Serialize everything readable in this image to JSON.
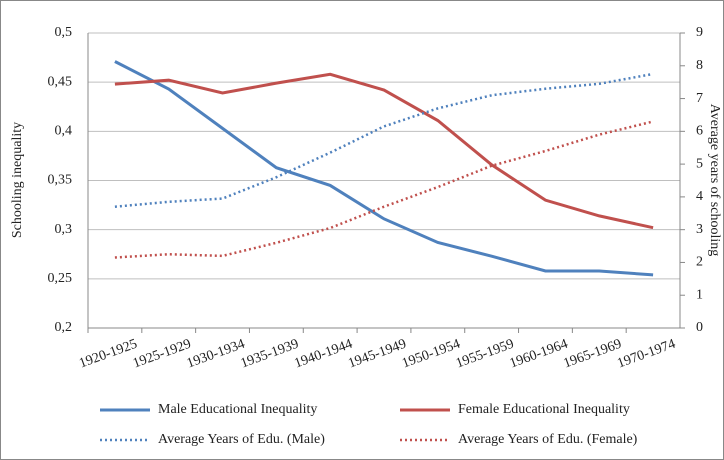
{
  "chart_data": {
    "type": "line",
    "y_label": "Schooling inequality",
    "y2_label": "Average years of schooling",
    "categories": [
      "1920-1925",
      "1925-1929",
      "1930-1934",
      "1935-1939",
      "1940-1944",
      "1945-1949",
      "1950-1954",
      "1955-1959",
      "1960-1964",
      "1965-1969",
      "1970-1974"
    ],
    "ylim": [
      0.2,
      0.5
    ],
    "yticks": [
      {
        "value": 0.2,
        "label": "0,2"
      },
      {
        "value": 0.25,
        "label": "0,25"
      },
      {
        "value": 0.3,
        "label": "0,3"
      },
      {
        "value": 0.35,
        "label": "0,35"
      },
      {
        "value": 0.4,
        "label": "0,4"
      },
      {
        "value": 0.45,
        "label": "0,45"
      },
      {
        "value": 0.5,
        "label": "0,5"
      }
    ],
    "y2lim": [
      0,
      9
    ],
    "y2ticks": [
      0,
      1,
      2,
      3,
      4,
      5,
      6,
      7,
      8,
      9
    ],
    "grid": true,
    "legend": "bottom",
    "series": [
      {
        "name": "Male Educational Inequality",
        "color": "#4f81bd",
        "style": "solid",
        "values": [
          0.471,
          0.443,
          0.403,
          0.363,
          0.345,
          0.311,
          0.287,
          0.273,
          0.258,
          0.258,
          0.254
        ]
      },
      {
        "name": "Female Educational Inequality",
        "color": "#c0504d",
        "style": "solid",
        "values": [
          0.448,
          0.452,
          0.439,
          0.449,
          0.458,
          0.442,
          0.411,
          0.366,
          0.33,
          0.314,
          0.302
        ]
      },
      {
        "name": "Average Years of Edu. (Male)",
        "color": "#4f81bd",
        "style": "dotted",
        "axis": "y2",
        "values": [
          3.7,
          3.85,
          3.95,
          4.6,
          5.35,
          6.15,
          6.7,
          7.1,
          7.3,
          7.45,
          7.75
        ]
      },
      {
        "name": "Average Years of Edu. (Female)",
        "color": "#c0504d",
        "style": "dotted",
        "axis": "y2",
        "values": [
          2.15,
          2.25,
          2.2,
          2.6,
          3.05,
          3.7,
          4.3,
          4.95,
          5.4,
          5.9,
          6.3
        ]
      }
    ]
  }
}
